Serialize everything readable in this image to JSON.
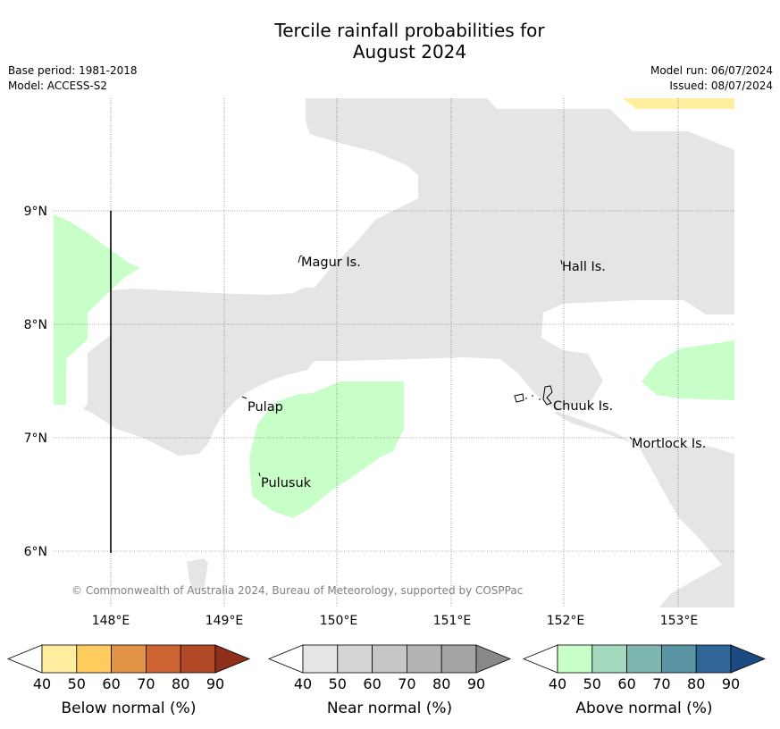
{
  "title_line1": "Tercile rainfall probabilities for",
  "title_line2": "August 2024",
  "meta": {
    "base_period": "Base period: 1981-2018",
    "model": "Model: ACCESS-S2",
    "model_run": "Model run: 06/07/2024",
    "issued": "Issued: 08/07/2024"
  },
  "map": {
    "lon_labels": [
      "148°E",
      "149°E",
      "150°E",
      "151°E",
      "152°E",
      "153°E"
    ],
    "lat_labels": [
      "9°N",
      "8°N",
      "7°N",
      "6°N"
    ],
    "places": [
      "Magur Is.",
      "Hall Is.",
      "Pulap",
      "Chuuk Is.",
      "Mortlock Is.",
      "Pulusuk"
    ],
    "copyright": "© Commonwealth of Australia 2024, Bureau of Meteorology, supported by COSPPac",
    "colors": {
      "near_normal_fill": "#e5e5e5",
      "above_normal_fill": "#c8ffc8",
      "below_normal_fill": "#ffeda0"
    }
  },
  "colorbars": [
    {
      "label": "Below normal (%)",
      "ticks": [
        "40",
        "50",
        "60",
        "70",
        "80",
        "90"
      ],
      "colors": [
        "#ffffff",
        "#ffeda0",
        "#fecc5c",
        "#e49446",
        "#ce6434",
        "#b34a27",
        "#8f2e1b"
      ]
    },
    {
      "label": "Near normal (%)",
      "ticks": [
        "40",
        "50",
        "60",
        "70",
        "80",
        "90"
      ],
      "colors": [
        "#ffffff",
        "#e5e5e5",
        "#d6d6d6",
        "#c6c6c6",
        "#b4b4b4",
        "#a4a4a4",
        "#888888"
      ]
    },
    {
      "label": "Above normal (%)",
      "ticks": [
        "40",
        "50",
        "60",
        "70",
        "80",
        "90"
      ],
      "colors": [
        "#ffffff",
        "#c8ffc8",
        "#a3d9bd",
        "#7db7b0",
        "#5b95a5",
        "#306597",
        "#1c4a82"
      ]
    }
  ]
}
